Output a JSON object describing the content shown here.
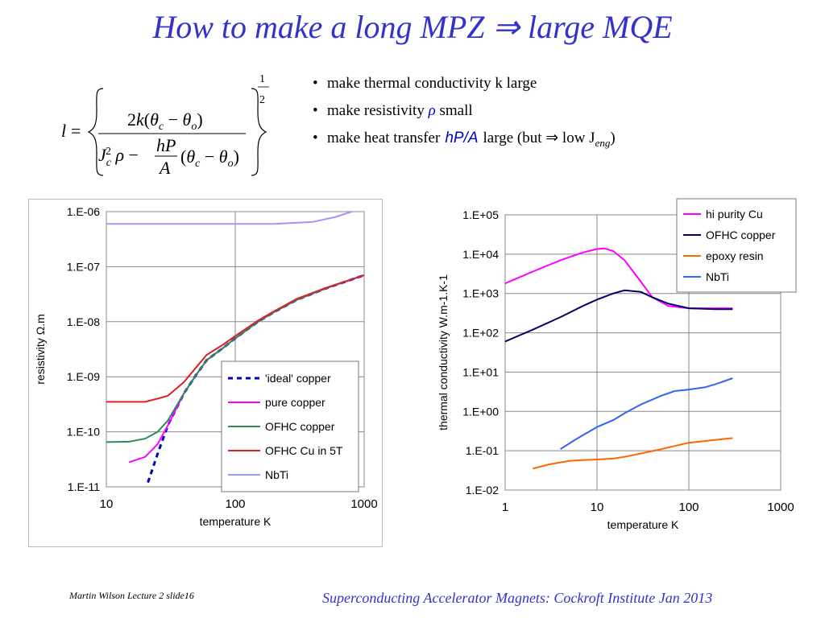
{
  "title": "How to make a long MPZ ⇒ large MQE",
  "bullets": {
    "b1": "make thermal conductivity k large",
    "b2_pre": "make resistivity",
    "b2_rho": "ρ",
    "b2_post": "small",
    "b3_pre": "make heat transfer",
    "b3_hpa": "hP/A",
    "b3_post": "large  (but ⇒ low J",
    "b3_sub": "eng",
    "b3_end": ")"
  },
  "footer": {
    "left": "Martin Wilson Lecture 2 slide16",
    "right": "Superconducting Accelerator Magnets:  Cockroft Institute Jan 2013"
  },
  "chart_data": [
    {
      "type": "line",
      "xscale": "log",
      "yscale": "log",
      "xlim": [
        10,
        1000
      ],
      "ylim": [
        1e-11,
        1e-06
      ],
      "xticks": [
        "10",
        "100",
        "1000"
      ],
      "yticks": [
        "1.E-11",
        "1.E-10",
        "1.E-09",
        "1.E-08",
        "1.E-07",
        "1.E-06"
      ],
      "xlabel": "temperature K",
      "ylabel": "resistivity   Ω.m",
      "grid": true,
      "legend_position": "bottom-right",
      "series": [
        {
          "name": "'ideal' copper",
          "color": "#0000cc",
          "dashed": true,
          "x": [
            21,
            25,
            30,
            40,
            50,
            60,
            80,
            100,
            150,
            200,
            300,
            500,
            1000
          ],
          "y": [
            1.2e-11,
            4e-11,
            1.3e-10,
            5e-10,
            1.1e-09,
            2e-09,
            3.3e-09,
            5e-09,
            1e-08,
            1.5e-08,
            2.5e-08,
            4e-08,
            7e-08
          ]
        },
        {
          "name": "pure copper",
          "color": "#ff00ff",
          "dashed": false,
          "x": [
            15,
            20,
            25,
            30,
            40,
            50,
            60,
            80,
            100,
            150,
            200,
            300,
            500,
            1000
          ],
          "y": [
            2.8e-11,
            3.5e-11,
            6e-11,
            1.3e-10,
            5e-10,
            1.1e-09,
            2e-09,
            3.3e-09,
            5e-09,
            1e-08,
            1.5e-08,
            2.5e-08,
            4e-08,
            7e-08
          ]
        },
        {
          "name": "OFHC copper",
          "color": "#2e8b57",
          "dashed": false,
          "x": [
            10,
            15,
            20,
            25,
            30,
            40,
            50,
            60,
            80,
            100,
            150,
            200,
            300,
            500,
            1000
          ],
          "y": [
            6.5e-11,
            6.6e-11,
            7.5e-11,
            1e-10,
            1.6e-10,
            5e-10,
            1.1e-09,
            2e-09,
            3.3e-09,
            5e-09,
            1e-08,
            1.5e-08,
            2.5e-08,
            4e-08,
            7e-08
          ]
        },
        {
          "name": "OFHC Cu in 5T",
          "color": "#dd2222",
          "dashed": false,
          "x": [
            10,
            15,
            20,
            25,
            30,
            40,
            50,
            60,
            80,
            100,
            150,
            200,
            300,
            500,
            1000
          ],
          "y": [
            3.5e-10,
            3.5e-10,
            3.5e-10,
            4e-10,
            4.5e-10,
            8e-10,
            1.5e-09,
            2.5e-09,
            3.8e-09,
            5.5e-09,
            1.05e-08,
            1.55e-08,
            2.6e-08,
            4.1e-08,
            7e-08
          ]
        },
        {
          "name": "NbTi",
          "color": "#9999ff",
          "dashed": false,
          "x": [
            10,
            20,
            50,
            100,
            200,
            400,
            600,
            800,
            1000
          ],
          "y": [
            6e-07,
            6e-07,
            6e-07,
            6e-07,
            6e-07,
            6.5e-07,
            8e-07,
            1e-06,
            1.1e-06
          ]
        }
      ]
    },
    {
      "type": "line",
      "xscale": "log",
      "yscale": "log",
      "xlim": [
        1,
        1000
      ],
      "ylim": [
        0.01,
        100000
      ],
      "xticks": [
        "1",
        "10",
        "100",
        "1000"
      ],
      "yticks": [
        "1.E-02",
        "1.E-01",
        "1.E+00",
        "1.E+01",
        "1.E+02",
        "1.E+03",
        "1.E+04",
        "1.E+05"
      ],
      "xlabel": "temperature K",
      "ylabel": "thermal conductivity W.m-1.K-1",
      "grid": true,
      "legend_position": "top-right",
      "series": [
        {
          "name": "hi purity Cu",
          "color": "#ff00ff",
          "x": [
            1,
            2,
            4,
            7,
            10,
            12,
            15,
            20,
            30,
            40,
            60,
            100,
            200,
            300
          ],
          "y": [
            1800,
            3600,
            7000,
            11000,
            13500,
            14000,
            12000,
            7000,
            2000,
            800,
            480,
            420,
            420,
            420
          ]
        },
        {
          "name": "OFHC copper",
          "color": "#000066",
          "x": [
            1,
            2,
            4,
            7,
            10,
            15,
            20,
            30,
            40,
            60,
            100,
            200,
            300
          ],
          "y": [
            60,
            120,
            250,
            480,
            700,
            1000,
            1200,
            1100,
            800,
            550,
            420,
            400,
            400
          ]
        },
        {
          "name": "epoxy resin",
          "color": "#ff6600",
          "x": [
            2,
            3,
            5,
            7,
            10,
            15,
            20,
            30,
            50,
            100,
            200,
            300
          ],
          "y": [
            0.035,
            0.045,
            0.055,
            0.058,
            0.06,
            0.063,
            0.07,
            0.085,
            0.11,
            0.16,
            0.19,
            0.21
          ]
        },
        {
          "name": "NbTi",
          "color": "#3366ee",
          "x": [
            4,
            6,
            10,
            15,
            20,
            30,
            50,
            70,
            100,
            150,
            200,
            300
          ],
          "y": [
            0.11,
            0.2,
            0.4,
            0.6,
            0.9,
            1.5,
            2.5,
            3.3,
            3.6,
            4.1,
            5,
            7
          ]
        }
      ]
    }
  ]
}
